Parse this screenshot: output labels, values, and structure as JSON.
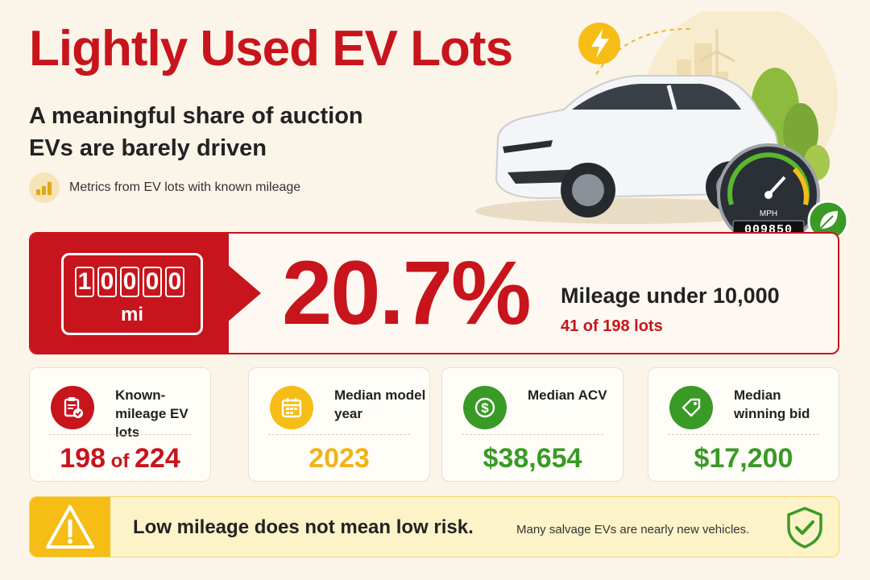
{
  "header": {
    "title": "Lightly Used EV Lots",
    "subtitle": "A meaningful share of auction EVs are barely driven",
    "note": "Metrics from EV lots with known mileage",
    "note_icon": "bar-chart-icon"
  },
  "illustration": {
    "odometer_label": "MPH",
    "odometer_reading": "009850",
    "icons": [
      "lightning-icon",
      "leaf-icon",
      "wind-turbine-icon"
    ]
  },
  "highlight": {
    "odometer_digits": [
      "1",
      "0",
      "0",
      "0",
      "0"
    ],
    "odometer_unit": "mi",
    "percent": "20.7%",
    "label": "Mileage under 10,000",
    "sub": "41 of 198 lots",
    "color": "#c8141c"
  },
  "stats": [
    {
      "label": "Known-mileage EV lots",
      "value_main": "198",
      "value_of": " of ",
      "value_total": "224",
      "color": "#c8141c",
      "icon": "clipboard-check-icon"
    },
    {
      "label": "Median model year",
      "value_main": "2023",
      "color": "#f0b417",
      "icon": "calendar-icon"
    },
    {
      "label": "Median ACV",
      "value_main": "$38,654",
      "color": "#3a9a26",
      "icon": "dollar-icon"
    },
    {
      "label": "Median winning bid",
      "value_main": "$17,200",
      "color": "#3a9a26",
      "icon": "price-tag-icon"
    }
  ],
  "warning": {
    "main": "Low mileage does not mean low risk.",
    "sub": "Many salvage EVs are nearly new vehicles.",
    "icon": "warning-icon",
    "shield_icon": "shield-check-icon",
    "color": "#f5bd16"
  }
}
